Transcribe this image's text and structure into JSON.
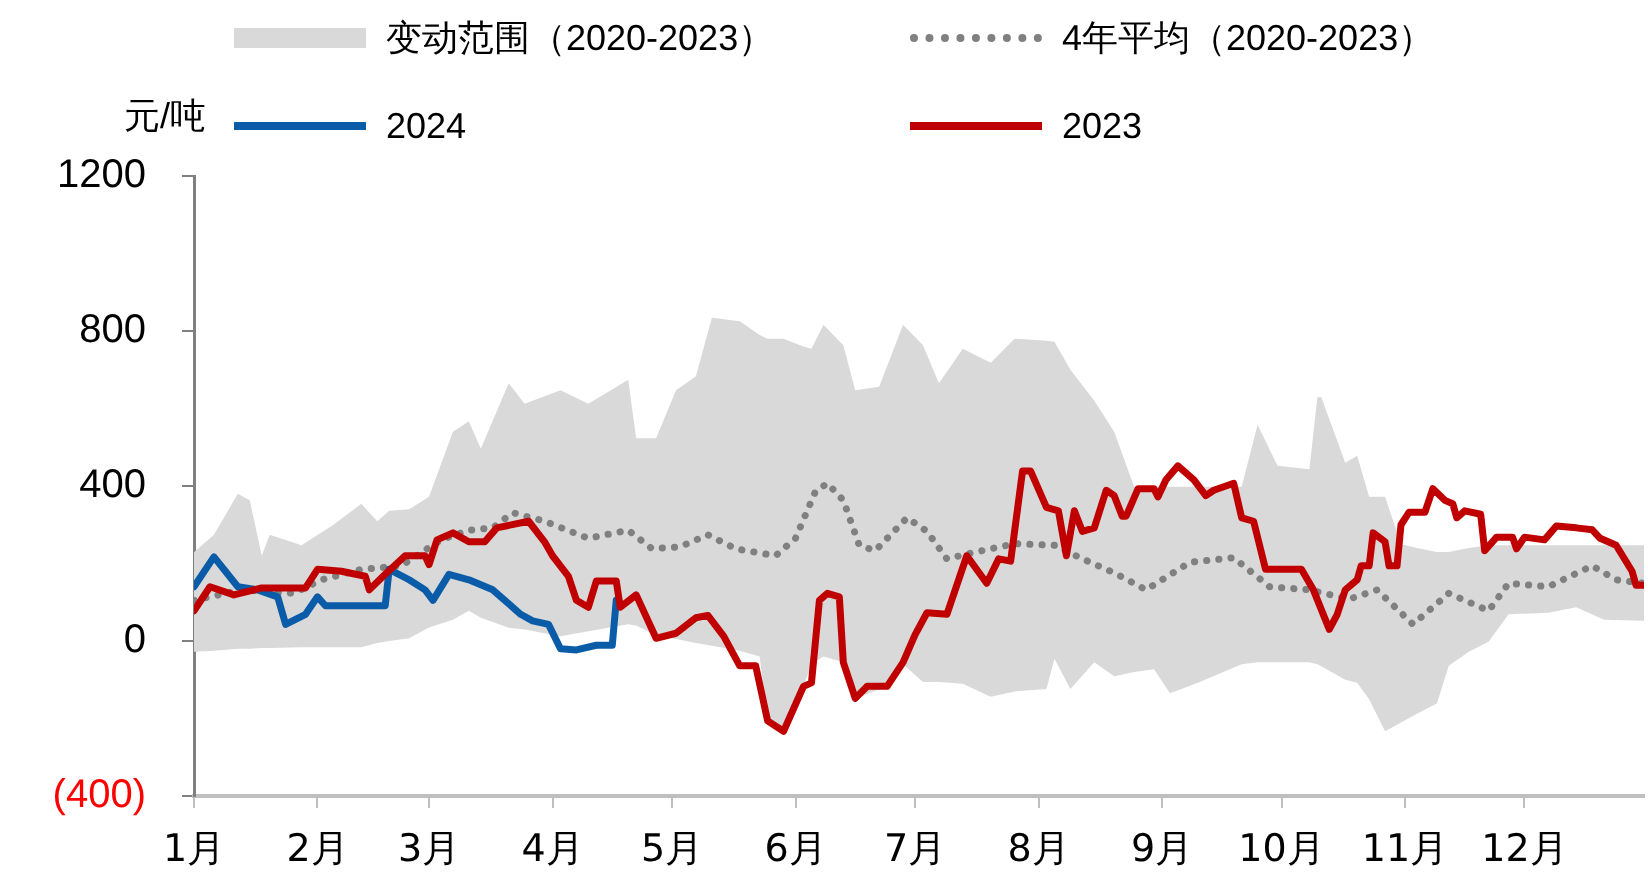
{
  "chart_data": {
    "type": "line",
    "ylabel": "元/吨",
    "legend": "top",
    "grid": false,
    "xlim": [
      "--01-01",
      "--12-31"
    ],
    "xticks": [
      {
        "value": "--01-01",
        "label": "1月"
      },
      {
        "value": "--02-01",
        "label": "2月"
      },
      {
        "value": "--03-01",
        "label": "3月"
      },
      {
        "value": "--04-01",
        "label": "4月"
      },
      {
        "value": "--05-01",
        "label": "5月"
      },
      {
        "value": "--06-01",
        "label": "6月"
      },
      {
        "value": "--07-01",
        "label": "7月"
      },
      {
        "value": "--08-01",
        "label": "8月"
      },
      {
        "value": "--09-01",
        "label": "9月"
      },
      {
        "value": "--10-01",
        "label": "10月"
      },
      {
        "value": "--11-01",
        "label": "11月"
      },
      {
        "value": "--12-01",
        "label": "12月"
      }
    ],
    "ylim": [
      -400,
      1200
    ],
    "yticks": [
      {
        "value": -400,
        "label": "(400)"
      },
      0,
      400,
      800,
      1200
    ],
    "series": [
      {
        "name": "变动范围（2020-2023）",
        "type": "area",
        "color": "#d9d9d9",
        "x": [
          "--01-01",
          "--01-06",
          "--01-12",
          "--01-15",
          "--01-18",
          "--01-20",
          "--01-28",
          "--02-05",
          "--02-12",
          "--02-16",
          "--02-19",
          "--02-24",
          "--03-01",
          "--03-07",
          "--03-11",
          "--03-14",
          "--03-21",
          "--03-25",
          "--04-03",
          "--04-10",
          "--04-20",
          "--04-22",
          "--04-27",
          "--05-02",
          "--05-07",
          "--05-11",
          "--05-18",
          "--05-23",
          "--05-25",
          "--05-29",
          "--06-03",
          "--06-05",
          "--06-08",
          "--06-13",
          "--06-16",
          "--06-22",
          "--06-28",
          "--07-03",
          "--07-07",
          "--07-13",
          "--07-20",
          "--07-26",
          "--08-03",
          "--08-05",
          "--08-09",
          "--08-15",
          "--08-20",
          "--08-25",
          "--08-30",
          "--09-03",
          "--09-10",
          "--09-21",
          "--09-25",
          "--09-30",
          "--10-08",
          "--10-10",
          "--10-11",
          "--10-17",
          "--10-20",
          "--10-23",
          "--10-27",
          "--10-31",
          "--11-04",
          "--11-09",
          "--11-12",
          "--11-17",
          "--11-22",
          "--11-27",
          "--12-07",
          "--12-14",
          "--12-21",
          "--12-31"
        ],
        "values": [
          null,
          null,
          null,
          null,
          null,
          null,
          null,
          null,
          null,
          null,
          null,
          null,
          null,
          null,
          null,
          null,
          null,
          null,
          null,
          null,
          null,
          null,
          null,
          null,
          null,
          null,
          null,
          null,
          null,
          null,
          null,
          null,
          null,
          null,
          null,
          null,
          null,
          null,
          null,
          null,
          null,
          null,
          null,
          null,
          null,
          null,
          null,
          null,
          null,
          null,
          null,
          null,
          null,
          null,
          null,
          null,
          null,
          null,
          null,
          null,
          null,
          null,
          null,
          null,
          null,
          null,
          null,
          null,
          null,
          null,
          null,
          null
        ],
        "upper": [
          229,
          274,
          380,
          363,
          220,
          274,
          247,
          300,
          354,
          309,
          336,
          340,
          372,
          540,
          567,
          496,
          665,
          612,
          647,
          612,
          674,
          523,
          523,
          647,
          683,
          834,
          825,
          790,
          780,
          780,
          760,
          754,
          816,
          763,
          647,
          656,
          816,
          763,
          665,
          754,
          718,
          780,
          775,
          772,
          700,
          620,
          540,
          398,
          398,
          398,
          398,
          398,
          558,
          452,
          443,
          629,
          629,
          460,
          478,
          372,
          372,
          250,
          240,
          230,
          230,
          240,
          247,
          247,
          247,
          247,
          247,
          247
        ],
        "lower": [
          -28,
          -25,
          -20,
          -20,
          -18,
          -18,
          -16,
          -16,
          -16,
          -5,
          0,
          7,
          35,
          55,
          78,
          60,
          34,
          30,
          12,
          25,
          43,
          40,
          15,
          5,
          -5,
          -12,
          -25,
          -40,
          -206,
          -233,
          -117,
          -60,
          -40,
          -55,
          -148,
          -125,
          -60,
          -106,
          -106,
          -110,
          -144,
          -130,
          -124,
          -46,
          -124,
          -55,
          -91,
          -80,
          -73,
          -135,
          -108,
          -60,
          -55,
          -55,
          -55,
          -60,
          -65,
          -100,
          -108,
          -150,
          -233,
          -210,
          -188,
          -161,
          -64,
          -28,
          -2,
          69,
          73,
          87,
          55,
          52
        ]
      },
      {
        "name": "4年平均（2020-2023）",
        "type": "line",
        "color": "#808080",
        "line_style": "dotted",
        "x": [
          "--01-01",
          "--01-13",
          "--01-26",
          "--02-02",
          "--02-12",
          "--02-22",
          "--03-04",
          "--03-11",
          "--03-17",
          "--03-22",
          "--03-30",
          "--04-10",
          "--04-20",
          "--04-26",
          "--05-03",
          "--05-10",
          "--05-17",
          "--05-27",
          "--06-01",
          "--06-06",
          "--06-09",
          "--06-13",
          "--06-17",
          "--06-21",
          "--06-29",
          "--07-04",
          "--07-09",
          "--07-16",
          "--07-26",
          "--08-05",
          "--08-12",
          "--08-20",
          "--08-28",
          "--09-08",
          "--09-19",
          "--09-28",
          "--10-08",
          "--10-18",
          "--10-25",
          "--11-03",
          "--11-12",
          "--11-22",
          "--11-27",
          "--12-07",
          "--12-18",
          "--12-24",
          "--12-31"
        ],
        "values": [
          105,
          132,
          123,
          158,
          185,
          194,
          261,
          286,
          292,
          331,
          309,
          265,
          286,
          238,
          243,
          274,
          238,
          220,
          265,
          386,
          407,
          363,
          247,
          233,
          318,
          283,
          212,
          229,
          251,
          247,
          212,
          176,
          132,
          203,
          215,
          140,
          132,
          108,
          132,
          43,
          123,
          78,
          149,
          140,
          194,
          158,
          149
        ]
      },
      {
        "name": "2024",
        "type": "line",
        "color": "#0a5ca8",
        "x": [
          "--01-01",
          "--01-06",
          "--01-12",
          "--01-17",
          "--01-22",
          "--01-24",
          "--01-29",
          "--02-01",
          "--02-03",
          "--02-18",
          "--02-19",
          "--02-24",
          "--02-28",
          "--03-02",
          "--03-06",
          "--03-11",
          "--03-17",
          "--03-24",
          "--03-27",
          "--03-31",
          "--04-03",
          "--04-07",
          "--04-12",
          "--04-16",
          "--04-17"
        ],
        "values": [
          140,
          217,
          140,
          132,
          114,
          43,
          69,
          114,
          91,
          91,
          185,
          158,
          132,
          105,
          172,
          158,
          132,
          69,
          52,
          43,
          -20,
          -23,
          -11,
          -11,
          105
        ]
      },
      {
        "name": "2023",
        "type": "line",
        "color": "#c00000",
        "x": [
          "--01-01",
          "--01-05",
          "--01-11",
          "--01-18",
          "--01-29",
          "--02-01",
          "--02-07",
          "--02-13",
          "--02-14",
          "--02-18",
          "--02-23",
          "--02-28",
          "--03-01",
          "--03-03",
          "--03-07",
          "--03-11",
          "--03-15",
          "--03-18",
          "--03-26",
          "--03-30",
          "--04-01",
          "--04-05",
          "--04-07",
          "--04-10",
          "--04-12",
          "--04-17",
          "--04-18",
          "--04-22",
          "--04-27",
          "--05-02",
          "--05-07",
          "--05-10",
          "--05-14",
          "--05-18",
          "--05-22",
          "--05-25",
          "--05-29",
          "--06-03",
          "--06-05",
          "--06-07",
          "--06-09",
          "--06-12",
          "--06-13",
          "--06-16",
          "--06-19",
          "--06-24",
          "--06-28",
          "--07-01",
          "--07-04",
          "--07-09",
          "--07-14",
          "--07-19",
          "--07-22",
          "--07-25",
          "--07-28",
          "--07-30",
          "--08-03",
          "--08-06",
          "--08-08",
          "--08-10",
          "--08-12",
          "--08-15",
          "--08-18",
          "--08-20",
          "--08-22",
          "--08-23",
          "--08-26",
          "--08-30",
          "--08-31",
          "--09-02",
          "--09-05",
          "--09-09",
          "--09-12",
          "--09-14",
          "--09-19",
          "--09-21",
          "--09-24",
          "--09-27",
          "--10-06",
          "--10-09",
          "--10-13",
          "--10-15",
          "--10-17",
          "--10-20",
          "--10-21",
          "--10-23",
          "--10-24",
          "--10-27",
          "--10-28",
          "--10-30",
          "--10-31",
          "--11-02",
          "--11-06",
          "--11-08",
          "--11-11",
          "--11-13",
          "--11-14",
          "--11-16",
          "--11-20",
          "--11-21",
          "--11-24",
          "--11-28",
          "--11-29",
          "--12-01",
          "--12-06",
          "--12-09",
          "--12-14",
          "--12-18",
          "--12-20",
          "--12-24",
          "--12-28",
          "--12-29",
          "--12-31"
        ],
        "values": [
          78,
          140,
          119,
          137,
          137,
          185,
          180,
          167,
          132,
          172,
          220,
          220,
          197,
          261,
          279,
          256,
          256,
          292,
          309,
          256,
          220,
          167,
          105,
          87,
          155,
          155,
          87,
          119,
          7,
          20,
          60,
          66,
          12,
          -64,
          -64,
          -206,
          -233,
          -117,
          -108,
          105,
          123,
          114,
          -55,
          -148,
          -117,
          -117,
          -55,
          16,
          73,
          69,
          220,
          149,
          212,
          206,
          439,
          439,
          345,
          336,
          220,
          336,
          283,
          292,
          389,
          375,
          322,
          322,
          393,
          393,
          372,
          416,
          452,
          416,
          375,
          389,
          407,
          318,
          309,
          185,
          185,
          132,
          30,
          69,
          132,
          158,
          194,
          194,
          279,
          256,
          194,
          194,
          300,
          332,
          332,
          393,
          363,
          354,
          318,
          336,
          327,
          233,
          268,
          268,
          238,
          268,
          261,
          297,
          292,
          287,
          265,
          247,
          180,
          144,
          144
        ]
      }
    ]
  }
}
